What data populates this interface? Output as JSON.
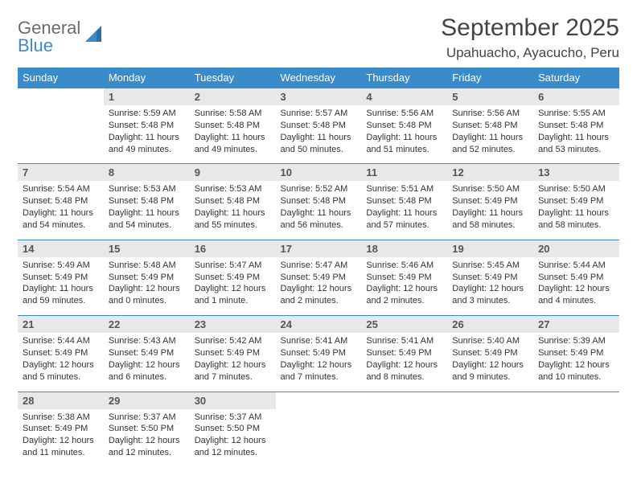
{
  "brand": {
    "name_part1": "General",
    "name_part2": "Blue"
  },
  "title": "September 2025",
  "location": "Upahuacho, Ayacucho, Peru",
  "colors": {
    "header_bg": "#3a8bc9",
    "header_text": "#ffffff",
    "daynum_bg": "#e8e8e8",
    "daynum_text": "#555555",
    "row_border": "#3a8bc9",
    "logo_gray": "#6b6b6b",
    "logo_blue": "#3a8bc9"
  },
  "weekdays": [
    "Sunday",
    "Monday",
    "Tuesday",
    "Wednesday",
    "Thursday",
    "Friday",
    "Saturday"
  ],
  "weeks": [
    [
      null,
      {
        "d": "1",
        "sr": "Sunrise: 5:59 AM",
        "ss": "Sunset: 5:48 PM",
        "dl1": "Daylight: 11 hours",
        "dl2": "and 49 minutes."
      },
      {
        "d": "2",
        "sr": "Sunrise: 5:58 AM",
        "ss": "Sunset: 5:48 PM",
        "dl1": "Daylight: 11 hours",
        "dl2": "and 49 minutes."
      },
      {
        "d": "3",
        "sr": "Sunrise: 5:57 AM",
        "ss": "Sunset: 5:48 PM",
        "dl1": "Daylight: 11 hours",
        "dl2": "and 50 minutes."
      },
      {
        "d": "4",
        "sr": "Sunrise: 5:56 AM",
        "ss": "Sunset: 5:48 PM",
        "dl1": "Daylight: 11 hours",
        "dl2": "and 51 minutes."
      },
      {
        "d": "5",
        "sr": "Sunrise: 5:56 AM",
        "ss": "Sunset: 5:48 PM",
        "dl1": "Daylight: 11 hours",
        "dl2": "and 52 minutes."
      },
      {
        "d": "6",
        "sr": "Sunrise: 5:55 AM",
        "ss": "Sunset: 5:48 PM",
        "dl1": "Daylight: 11 hours",
        "dl2": "and 53 minutes."
      }
    ],
    [
      {
        "d": "7",
        "sr": "Sunrise: 5:54 AM",
        "ss": "Sunset: 5:48 PM",
        "dl1": "Daylight: 11 hours",
        "dl2": "and 54 minutes."
      },
      {
        "d": "8",
        "sr": "Sunrise: 5:53 AM",
        "ss": "Sunset: 5:48 PM",
        "dl1": "Daylight: 11 hours",
        "dl2": "and 54 minutes."
      },
      {
        "d": "9",
        "sr": "Sunrise: 5:53 AM",
        "ss": "Sunset: 5:48 PM",
        "dl1": "Daylight: 11 hours",
        "dl2": "and 55 minutes."
      },
      {
        "d": "10",
        "sr": "Sunrise: 5:52 AM",
        "ss": "Sunset: 5:48 PM",
        "dl1": "Daylight: 11 hours",
        "dl2": "and 56 minutes."
      },
      {
        "d": "11",
        "sr": "Sunrise: 5:51 AM",
        "ss": "Sunset: 5:48 PM",
        "dl1": "Daylight: 11 hours",
        "dl2": "and 57 minutes."
      },
      {
        "d": "12",
        "sr": "Sunrise: 5:50 AM",
        "ss": "Sunset: 5:49 PM",
        "dl1": "Daylight: 11 hours",
        "dl2": "and 58 minutes."
      },
      {
        "d": "13",
        "sr": "Sunrise: 5:50 AM",
        "ss": "Sunset: 5:49 PM",
        "dl1": "Daylight: 11 hours",
        "dl2": "and 58 minutes."
      }
    ],
    [
      {
        "d": "14",
        "sr": "Sunrise: 5:49 AM",
        "ss": "Sunset: 5:49 PM",
        "dl1": "Daylight: 11 hours",
        "dl2": "and 59 minutes."
      },
      {
        "d": "15",
        "sr": "Sunrise: 5:48 AM",
        "ss": "Sunset: 5:49 PM",
        "dl1": "Daylight: 12 hours",
        "dl2": "and 0 minutes."
      },
      {
        "d": "16",
        "sr": "Sunrise: 5:47 AM",
        "ss": "Sunset: 5:49 PM",
        "dl1": "Daylight: 12 hours",
        "dl2": "and 1 minute."
      },
      {
        "d": "17",
        "sr": "Sunrise: 5:47 AM",
        "ss": "Sunset: 5:49 PM",
        "dl1": "Daylight: 12 hours",
        "dl2": "and 2 minutes."
      },
      {
        "d": "18",
        "sr": "Sunrise: 5:46 AM",
        "ss": "Sunset: 5:49 PM",
        "dl1": "Daylight: 12 hours",
        "dl2": "and 2 minutes."
      },
      {
        "d": "19",
        "sr": "Sunrise: 5:45 AM",
        "ss": "Sunset: 5:49 PM",
        "dl1": "Daylight: 12 hours",
        "dl2": "and 3 minutes."
      },
      {
        "d": "20",
        "sr": "Sunrise: 5:44 AM",
        "ss": "Sunset: 5:49 PM",
        "dl1": "Daylight: 12 hours",
        "dl2": "and 4 minutes."
      }
    ],
    [
      {
        "d": "21",
        "sr": "Sunrise: 5:44 AM",
        "ss": "Sunset: 5:49 PM",
        "dl1": "Daylight: 12 hours",
        "dl2": "and 5 minutes."
      },
      {
        "d": "22",
        "sr": "Sunrise: 5:43 AM",
        "ss": "Sunset: 5:49 PM",
        "dl1": "Daylight: 12 hours",
        "dl2": "and 6 minutes."
      },
      {
        "d": "23",
        "sr": "Sunrise: 5:42 AM",
        "ss": "Sunset: 5:49 PM",
        "dl1": "Daylight: 12 hours",
        "dl2": "and 7 minutes."
      },
      {
        "d": "24",
        "sr": "Sunrise: 5:41 AM",
        "ss": "Sunset: 5:49 PM",
        "dl1": "Daylight: 12 hours",
        "dl2": "and 7 minutes."
      },
      {
        "d": "25",
        "sr": "Sunrise: 5:41 AM",
        "ss": "Sunset: 5:49 PM",
        "dl1": "Daylight: 12 hours",
        "dl2": "and 8 minutes."
      },
      {
        "d": "26",
        "sr": "Sunrise: 5:40 AM",
        "ss": "Sunset: 5:49 PM",
        "dl1": "Daylight: 12 hours",
        "dl2": "and 9 minutes."
      },
      {
        "d": "27",
        "sr": "Sunrise: 5:39 AM",
        "ss": "Sunset: 5:49 PM",
        "dl1": "Daylight: 12 hours",
        "dl2": "and 10 minutes."
      }
    ],
    [
      {
        "d": "28",
        "sr": "Sunrise: 5:38 AM",
        "ss": "Sunset: 5:49 PM",
        "dl1": "Daylight: 12 hours",
        "dl2": "and 11 minutes."
      },
      {
        "d": "29",
        "sr": "Sunrise: 5:37 AM",
        "ss": "Sunset: 5:50 PM",
        "dl1": "Daylight: 12 hours",
        "dl2": "and 12 minutes."
      },
      {
        "d": "30",
        "sr": "Sunrise: 5:37 AM",
        "ss": "Sunset: 5:50 PM",
        "dl1": "Daylight: 12 hours",
        "dl2": "and 12 minutes."
      },
      null,
      null,
      null,
      null
    ]
  ]
}
